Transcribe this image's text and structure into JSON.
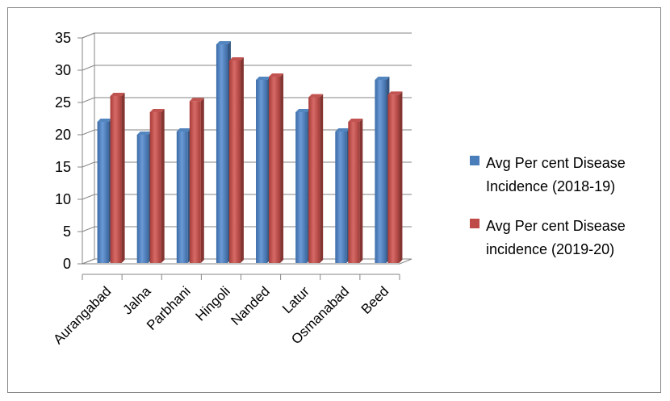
{
  "chart_data": {
    "type": "bar",
    "categories": [
      "Aurangabad",
      "Jalna",
      "Parbhani",
      "Hingoli",
      "Nanded",
      "Latur",
      "Osmanabad",
      "Beed"
    ],
    "series": [
      {
        "name": "Avg Per cent Disease Incidence (2018-19)",
        "legend_lines": [
          "Avg Per cent Disease",
          "Incidence (2018-19)"
        ],
        "color": "#4A7EBB",
        "values": [
          22.5,
          20.5,
          21,
          34.5,
          29,
          24,
          21,
          29
        ]
      },
      {
        "name": "Avg Per cent Disease incidence (2019-20)",
        "legend_lines": [
          "Avg Per cent Disease",
          "incidence (2019-20)"
        ],
        "color": "#BE4B48",
        "values": [
          26.5,
          24,
          25.7,
          32,
          29.5,
          26.3,
          22.5,
          26.7
        ]
      }
    ],
    "yticks": [
      "0",
      "5",
      "10",
      "15",
      "20",
      "25",
      "30",
      "35"
    ],
    "ylim": [
      0,
      35
    ],
    "grid": true,
    "legend_position": "right",
    "three_d": true
  }
}
